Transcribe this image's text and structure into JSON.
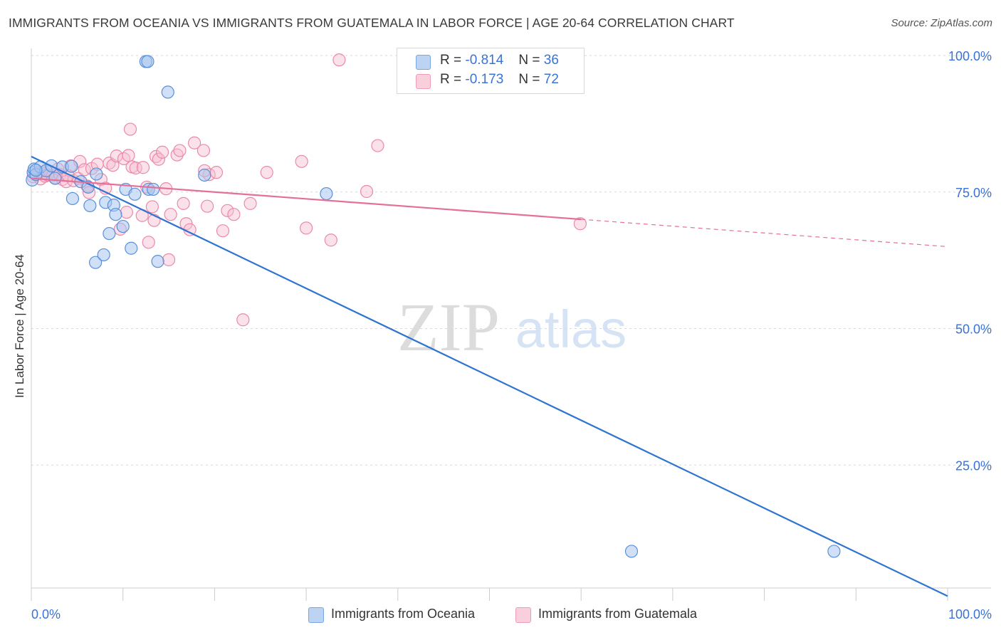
{
  "title": "IMMIGRANTS FROM OCEANIA VS IMMIGRANTS FROM GUATEMALA IN LABOR FORCE | AGE 20-64 CORRELATION CHART",
  "source": "Source: ZipAtlas.com",
  "watermark": {
    "zip": "ZIP",
    "atlas": "atlas"
  },
  "legend": {
    "rows": [
      {
        "r_label": "R =",
        "r_value": "-0.814",
        "n_label": "N =",
        "n_value": "36",
        "color": "#a8c6f0",
        "stroke": "#5b8fd8"
      },
      {
        "r_label": "R =",
        "r_value": "-0.173",
        "n_label": "N =",
        "n_value": "72",
        "color": "#f7bfd0",
        "stroke": "#e98aaa"
      }
    ]
  },
  "bottom_legend": [
    {
      "label": "Immigrants from Oceania",
      "color": "#a8c6f0",
      "stroke": "#5b8fd8"
    },
    {
      "label": "Immigrants from Guatemala",
      "color": "#f7bfd0",
      "stroke": "#e98aaa"
    }
  ],
  "chart_data": {
    "type": "scatter",
    "title": "IMMIGRANTS FROM OCEANIA VS IMMIGRANTS FROM GUATEMALA IN LABOR FORCE | AGE 20-64 CORRELATION CHART",
    "xlabel": "",
    "ylabel": "In Labor Force | Age 20-64",
    "xlim": [
      0,
      100
    ],
    "ylim": [
      0,
      100
    ],
    "x_tick_labels": [
      "0.0%",
      "100.0%"
    ],
    "y_ticks": [
      25,
      50,
      75,
      100
    ],
    "y_tick_labels": [
      "25.0%",
      "50.0%",
      "75.0%",
      "100.0%"
    ],
    "grid": true,
    "legend_position": "top-center",
    "series": [
      {
        "name": "Immigrants from Oceania",
        "color": "#5b8fd8",
        "trend": {
          "x": [
            0,
            100
          ],
          "y": [
            81.5,
            1.0
          ],
          "color": "#2f74d0"
        },
        "points": [
          {
            "x": 0.1,
            "y": 77.2
          },
          {
            "x": 0.2,
            "y": 78.6
          },
          {
            "x": 0.3,
            "y": 79.2
          },
          {
            "x": 0.5,
            "y": 78.2
          },
          {
            "x": 1.0,
            "y": 79.6
          },
          {
            "x": 1.6,
            "y": 78.9
          },
          {
            "x": 2.2,
            "y": 79.8
          },
          {
            "x": 2.6,
            "y": 77.5
          },
          {
            "x": 3.4,
            "y": 79.6
          },
          {
            "x": 4.4,
            "y": 79.7
          },
          {
            "x": 4.5,
            "y": 73.8
          },
          {
            "x": 5.4,
            "y": 76.9
          },
          {
            "x": 6.2,
            "y": 75.9
          },
          {
            "x": 6.4,
            "y": 72.5
          },
          {
            "x": 7.1,
            "y": 78.3
          },
          {
            "x": 7.0,
            "y": 62.1
          },
          {
            "x": 7.9,
            "y": 63.5
          },
          {
            "x": 8.1,
            "y": 73.1
          },
          {
            "x": 8.5,
            "y": 67.4
          },
          {
            "x": 9.0,
            "y": 72.6
          },
          {
            "x": 9.2,
            "y": 70.9
          },
          {
            "x": 10.0,
            "y": 68.7
          },
          {
            "x": 10.3,
            "y": 75.5
          },
          {
            "x": 10.9,
            "y": 64.7
          },
          {
            "x": 11.3,
            "y": 74.6
          },
          {
            "x": 12.8,
            "y": 75.5
          },
          {
            "x": 13.3,
            "y": 75.5
          },
          {
            "x": 12.5,
            "y": 98.9
          },
          {
            "x": 12.7,
            "y": 98.9
          },
          {
            "x": 14.9,
            "y": 93.3
          },
          {
            "x": 13.8,
            "y": 62.3
          },
          {
            "x": 18.9,
            "y": 78.1
          },
          {
            "x": 32.2,
            "y": 74.7
          },
          {
            "x": 65.5,
            "y": 9.2
          },
          {
            "x": 87.6,
            "y": 9.2
          },
          {
            "x": 0.5,
            "y": 79.0
          }
        ]
      },
      {
        "name": "Immigrants from Guatemala",
        "color": "#e98aaa",
        "trend": {
          "x": [
            0,
            60
          ],
          "y": [
            77.5,
            70.0
          ],
          "dashed_to": [
            100,
            65.0
          ],
          "color": "#e4709a"
        },
        "points": [
          {
            "x": 0.2,
            "y": 77.8
          },
          {
            "x": 0.5,
            "y": 78.3
          },
          {
            "x": 0.8,
            "y": 78.6
          },
          {
            "x": 1.0,
            "y": 77.4
          },
          {
            "x": 1.3,
            "y": 78.5
          },
          {
            "x": 1.5,
            "y": 77.9
          },
          {
            "x": 1.8,
            "y": 78.1
          },
          {
            "x": 2.0,
            "y": 78.7
          },
          {
            "x": 2.3,
            "y": 78.0
          },
          {
            "x": 2.6,
            "y": 77.6
          },
          {
            "x": 2.9,
            "y": 79.2
          },
          {
            "x": 3.1,
            "y": 78.2
          },
          {
            "x": 3.4,
            "y": 77.3
          },
          {
            "x": 3.8,
            "y": 76.9
          },
          {
            "x": 4.3,
            "y": 79.8
          },
          {
            "x": 4.6,
            "y": 77.1
          },
          {
            "x": 5.1,
            "y": 77.5
          },
          {
            "x": 5.3,
            "y": 80.6
          },
          {
            "x": 5.8,
            "y": 79.1
          },
          {
            "x": 6.1,
            "y": 76.1
          },
          {
            "x": 6.3,
            "y": 74.9
          },
          {
            "x": 6.6,
            "y": 79.3
          },
          {
            "x": 7.2,
            "y": 80.1
          },
          {
            "x": 7.6,
            "y": 77.3
          },
          {
            "x": 8.1,
            "y": 75.7
          },
          {
            "x": 8.5,
            "y": 80.3
          },
          {
            "x": 8.9,
            "y": 79.9
          },
          {
            "x": 9.3,
            "y": 81.6
          },
          {
            "x": 9.7,
            "y": 68.2
          },
          {
            "x": 10.1,
            "y": 81.1
          },
          {
            "x": 10.4,
            "y": 71.3
          },
          {
            "x": 10.6,
            "y": 81.7
          },
          {
            "x": 10.8,
            "y": 86.5
          },
          {
            "x": 11.0,
            "y": 79.6
          },
          {
            "x": 11.4,
            "y": 79.4
          },
          {
            "x": 12.1,
            "y": 70.7
          },
          {
            "x": 12.6,
            "y": 75.9
          },
          {
            "x": 12.8,
            "y": 65.8
          },
          {
            "x": 13.2,
            "y": 72.3
          },
          {
            "x": 13.4,
            "y": 69.8
          },
          {
            "x": 13.6,
            "y": 81.5
          },
          {
            "x": 13.9,
            "y": 81.0
          },
          {
            "x": 14.3,
            "y": 82.3
          },
          {
            "x": 14.7,
            "y": 75.6
          },
          {
            "x": 15.0,
            "y": 62.6
          },
          {
            "x": 15.2,
            "y": 70.9
          },
          {
            "x": 15.9,
            "y": 81.8
          },
          {
            "x": 16.2,
            "y": 82.6
          },
          {
            "x": 16.6,
            "y": 72.9
          },
          {
            "x": 16.9,
            "y": 69.2
          },
          {
            "x": 17.3,
            "y": 68.1
          },
          {
            "x": 17.8,
            "y": 84.0
          },
          {
            "x": 18.8,
            "y": 82.6
          },
          {
            "x": 19.2,
            "y": 72.4
          },
          {
            "x": 19.4,
            "y": 78.2
          },
          {
            "x": 20.2,
            "y": 78.6
          },
          {
            "x": 20.9,
            "y": 67.9
          },
          {
            "x": 21.4,
            "y": 71.6
          },
          {
            "x": 22.1,
            "y": 70.9
          },
          {
            "x": 23.1,
            "y": 51.6
          },
          {
            "x": 23.9,
            "y": 72.9
          },
          {
            "x": 25.7,
            "y": 78.6
          },
          {
            "x": 29.5,
            "y": 80.6
          },
          {
            "x": 30.0,
            "y": 68.4
          },
          {
            "x": 32.7,
            "y": 66.2
          },
          {
            "x": 33.6,
            "y": 99.2
          },
          {
            "x": 36.6,
            "y": 75.1
          },
          {
            "x": 37.8,
            "y": 83.5
          },
          {
            "x": 59.9,
            "y": 69.2
          },
          {
            "x": 18.9,
            "y": 78.9
          },
          {
            "x": 12.2,
            "y": 79.5
          },
          {
            "x": 4.0,
            "y": 78.0
          }
        ]
      }
    ]
  }
}
